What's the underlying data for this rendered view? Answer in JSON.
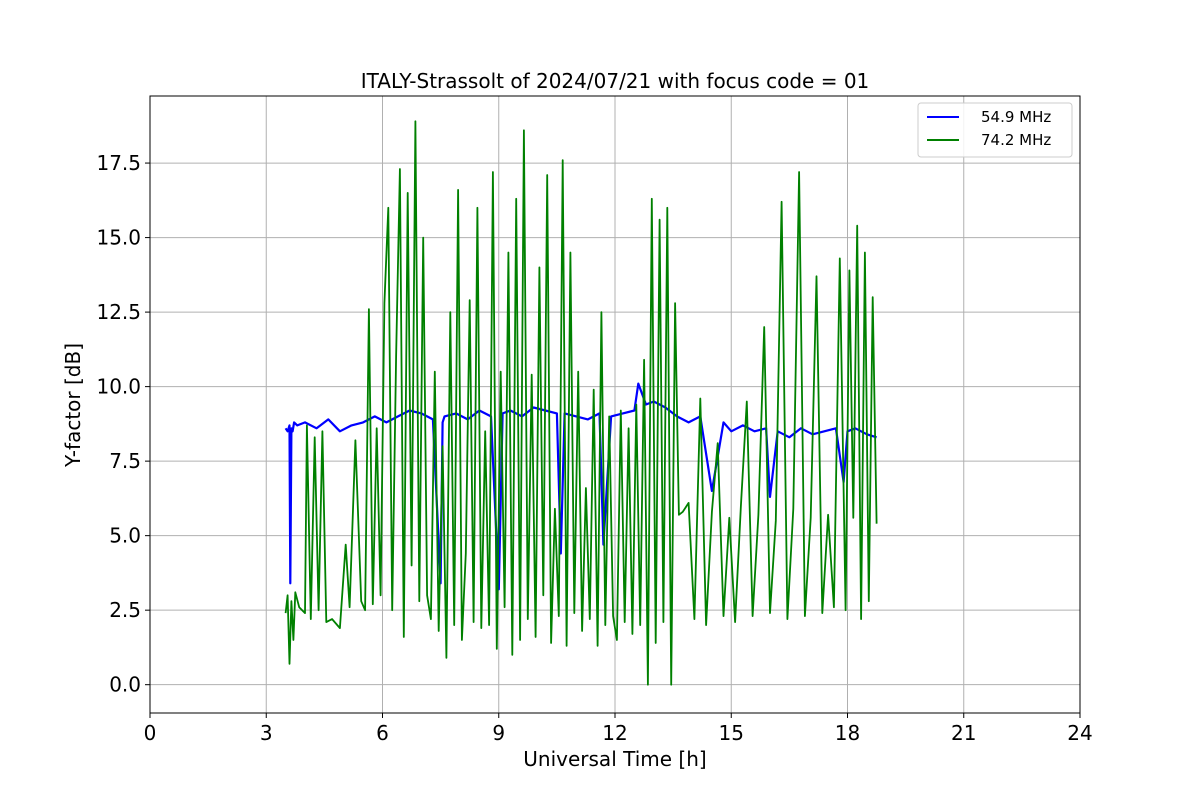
{
  "chart_data": {
    "type": "line",
    "title": "ITALY-Strassolt of 2024/07/21 with focus code = 01",
    "xlabel": "Universal Time [h]",
    "ylabel": "Y-factor [dB]",
    "xlim": [
      0,
      24
    ],
    "ylim": [
      -0.95,
      19.75
    ],
    "xticks": [
      0,
      3,
      6,
      9,
      12,
      15,
      18,
      21,
      24
    ],
    "xtick_labels": [
      "0",
      "3",
      "6",
      "9",
      "12",
      "15",
      "18",
      "21",
      "24"
    ],
    "yticks": [
      0.0,
      2.5,
      5.0,
      7.5,
      10.0,
      12.5,
      15.0,
      17.5
    ],
    "ytick_labels": [
      "0.0",
      "2.5",
      "5.0",
      "7.5",
      "10.0",
      "12.5",
      "15.0",
      "17.5"
    ],
    "grid": true,
    "legend_position": "top-right",
    "series": [
      {
        "name": "54.9 MHz",
        "color": "#0000ff",
        "x": [
          3.5,
          3.55,
          3.6,
          3.62,
          3.65,
          3.68,
          3.72,
          3.8,
          4.0,
          4.3,
          4.6,
          4.9,
          5.2,
          5.5,
          5.8,
          6.1,
          6.4,
          6.7,
          7.0,
          7.3,
          7.5,
          7.55,
          7.6,
          7.9,
          8.2,
          8.5,
          8.8,
          9.0,
          9.1,
          9.3,
          9.6,
          9.9,
          10.2,
          10.5,
          10.6,
          10.7,
          11.0,
          11.3,
          11.6,
          11.7,
          11.9,
          12.2,
          12.5,
          12.6,
          12.8,
          13.0,
          13.3,
          13.6,
          13.9,
          14.2,
          14.5,
          14.8,
          15.0,
          15.3,
          15.6,
          15.9,
          16.0,
          16.2,
          16.5,
          16.8,
          17.1,
          17.4,
          17.7,
          17.9,
          18.0,
          18.2,
          18.5,
          18.75
        ],
        "y": [
          8.6,
          8.5,
          8.7,
          3.4,
          8.6,
          8.5,
          8.8,
          8.7,
          8.8,
          8.6,
          8.9,
          8.5,
          8.7,
          8.8,
          9.0,
          8.8,
          9.0,
          9.2,
          9.1,
          8.9,
          3.4,
          8.8,
          9.0,
          9.1,
          8.9,
          9.2,
          9.0,
          3.2,
          9.1,
          9.2,
          9.0,
          9.3,
          9.2,
          9.1,
          4.4,
          9.1,
          9.0,
          8.9,
          9.1,
          4.7,
          9.0,
          9.1,
          9.2,
          10.1,
          9.4,
          9.5,
          9.3,
          9.0,
          8.8,
          9.0,
          6.5,
          8.8,
          8.5,
          8.7,
          8.5,
          8.6,
          6.3,
          8.5,
          8.3,
          8.6,
          8.4,
          8.5,
          8.6,
          6.8,
          8.5,
          8.6,
          8.4,
          8.3
        ]
      },
      {
        "name": "74.2 MHz",
        "color": "#008000",
        "x": [
          3.5,
          3.55,
          3.6,
          3.65,
          3.7,
          3.75,
          3.85,
          4.0,
          4.05,
          4.15,
          4.25,
          4.35,
          4.45,
          4.55,
          4.7,
          4.9,
          5.05,
          5.15,
          5.3,
          5.45,
          5.55,
          5.65,
          5.75,
          5.85,
          5.95,
          6.05,
          6.15,
          6.25,
          6.35,
          6.45,
          6.55,
          6.65,
          6.75,
          6.85,
          6.95,
          7.05,
          7.15,
          7.25,
          7.35,
          7.45,
          7.55,
          7.65,
          7.75,
          7.85,
          7.95,
          8.05,
          8.15,
          8.25,
          8.35,
          8.45,
          8.55,
          8.65,
          8.75,
          8.85,
          8.95,
          9.05,
          9.15,
          9.25,
          9.35,
          9.45,
          9.55,
          9.65,
          9.75,
          9.85,
          9.95,
          10.05,
          10.15,
          10.25,
          10.35,
          10.45,
          10.55,
          10.65,
          10.75,
          10.85,
          10.95,
          11.05,
          11.15,
          11.25,
          11.35,
          11.45,
          11.55,
          11.65,
          11.75,
          11.85,
          11.95,
          12.05,
          12.15,
          12.25,
          12.35,
          12.45,
          12.55,
          12.65,
          12.75,
          12.85,
          12.95,
          13.05,
          13.15,
          13.25,
          13.35,
          13.45,
          13.55,
          13.65,
          13.75,
          13.9,
          14.05,
          14.2,
          14.35,
          14.5,
          14.65,
          14.8,
          14.95,
          15.1,
          15.25,
          15.4,
          15.55,
          15.7,
          15.85,
          16.0,
          16.15,
          16.3,
          16.45,
          16.6,
          16.75,
          16.9,
          17.05,
          17.2,
          17.35,
          17.5,
          17.65,
          17.8,
          17.95,
          18.05,
          18.15,
          18.25,
          18.35,
          18.45,
          18.55,
          18.65,
          18.75
        ],
        "y": [
          2.4,
          3.0,
          0.7,
          2.8,
          1.5,
          3.1,
          2.6,
          2.4,
          8.7,
          2.2,
          8.3,
          2.5,
          8.5,
          2.1,
          2.2,
          1.9,
          4.7,
          2.6,
          8.2,
          2.8,
          2.5,
          12.6,
          2.7,
          8.6,
          3.0,
          12.8,
          16.0,
          2.5,
          11.0,
          17.3,
          1.6,
          16.5,
          4.0,
          18.9,
          2.8,
          15.0,
          3.0,
          2.2,
          10.5,
          1.8,
          8.0,
          0.9,
          12.5,
          2.0,
          16.6,
          1.5,
          4.4,
          12.9,
          2.1,
          16.0,
          1.9,
          8.5,
          2.0,
          17.2,
          1.2,
          10.5,
          2.6,
          14.5,
          1.0,
          16.3,
          1.5,
          18.6,
          2.2,
          10.4,
          1.6,
          14.0,
          3.0,
          17.1,
          1.4,
          5.9,
          2.3,
          17.6,
          1.3,
          14.5,
          2.4,
          10.5,
          1.8,
          6.6,
          2.2,
          9.9,
          1.3,
          12.5,
          2.0,
          9.0,
          2.3,
          1.5,
          9.2,
          2.1,
          8.6,
          1.7,
          9.4,
          2.0,
          10.9,
          0.0,
          16.3,
          1.4,
          15.6,
          2.1,
          16.0,
          0.0,
          12.8,
          5.7,
          5.8,
          6.1,
          2.2,
          9.6,
          2.0,
          5.8,
          8.1,
          2.3,
          5.6,
          2.1,
          6.0,
          9.5,
          2.3,
          5.7,
          12.0,
          2.4,
          5.5,
          16.2,
          2.2,
          5.9,
          17.2,
          2.3,
          5.6,
          13.7,
          2.4,
          5.7,
          2.6,
          14.3,
          2.5,
          13.9,
          5.6,
          15.4,
          2.2,
          14.5,
          2.8,
          13.0,
          5.4
        ]
      }
    ]
  }
}
